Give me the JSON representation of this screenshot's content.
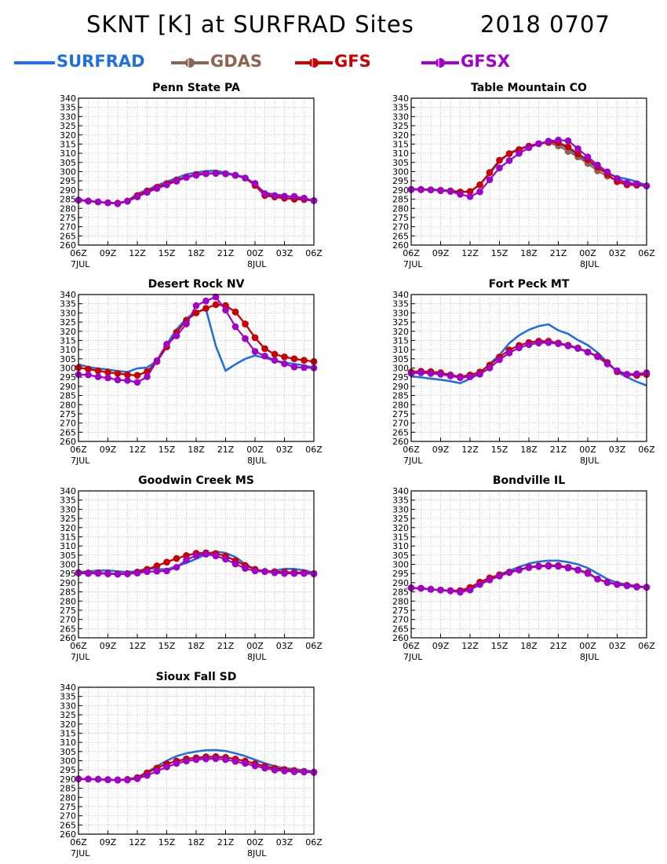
{
  "header": {
    "title": "SKNT [K] at SURFRAD Sites",
    "date": "2018 0707"
  },
  "legend": [
    {
      "name": "SURFRAD",
      "color": "#1f6fe0",
      "marker": "none"
    },
    {
      "name": "GDAS",
      "color": "#8c6452",
      "marker": "circle"
    },
    {
      "name": "GFS",
      "color": "#c80000",
      "marker": "circle"
    },
    {
      "name": "GFSX",
      "color": "#a000c8",
      "marker": "circle"
    }
  ],
  "axes": {
    "y_ticks": [
      260,
      265,
      270,
      275,
      280,
      285,
      290,
      295,
      300,
      305,
      310,
      315,
      320,
      325,
      330,
      335,
      340
    ],
    "ylim": [
      260,
      340
    ],
    "x_ticks": [
      "06Z",
      "09Z",
      "12Z",
      "15Z",
      "18Z",
      "21Z",
      "00Z",
      "03Z",
      "06Z"
    ],
    "x_hours": [
      0,
      3,
      6,
      9,
      12,
      15,
      18,
      21,
      24
    ],
    "date_labels": [
      {
        "at_hour": 0,
        "text": "7JUL"
      },
      {
        "at_hour": 18,
        "text": "8JUL"
      }
    ],
    "grid": true
  },
  "chart_data": [
    {
      "type": "line",
      "title": "Penn State PA",
      "x": [
        0,
        1,
        2,
        3,
        4,
        5,
        6,
        7,
        8,
        9,
        10,
        11,
        12,
        13,
        14,
        15,
        16,
        17,
        18,
        19,
        20,
        21,
        22,
        23,
        24
      ],
      "series": [
        {
          "name": "SURFRAD",
          "values": [
            284.5,
            284.0,
            283.5,
            283.0,
            282.8,
            284.0,
            288.0,
            290.0,
            292.5,
            294.5,
            296.5,
            298.5,
            299.5,
            300.3,
            300.5,
            299.5,
            298.2,
            297.0,
            293.0,
            288.5,
            287.6,
            287.0,
            285.8,
            285.0,
            284.2
          ]
        },
        {
          "name": "GDAS",
          "values": [
            284.5,
            284.0,
            283.5,
            283.0,
            282.8,
            284.0,
            287.0,
            289.5,
            291.5,
            293.5,
            295.5,
            297.0,
            298.5,
            299.0,
            299.2,
            298.8,
            298.0,
            296.5,
            292.5,
            287.0,
            286.2,
            285.5,
            285.0,
            284.8,
            284.2
          ]
        },
        {
          "name": "GFS",
          "values": [
            284.5,
            284.0,
            283.5,
            283.0,
            282.8,
            284.0,
            287.0,
            289.5,
            291.5,
            293.5,
            295.5,
            297.0,
            298.5,
            299.0,
            299.2,
            298.8,
            298.0,
            296.5,
            292.5,
            287.0,
            286.2,
            285.5,
            285.0,
            284.8,
            284.2
          ]
        },
        {
          "name": "GFSX",
          "values": [
            284.5,
            284.0,
            283.5,
            283.0,
            282.5,
            283.8,
            286.2,
            288.7,
            290.8,
            292.8,
            294.8,
            296.8,
            298.0,
            298.8,
            299.0,
            298.8,
            298.0,
            296.5,
            293.6,
            288.0,
            287.0,
            286.6,
            286.5,
            285.6,
            284.2
          ]
        }
      ]
    },
    {
      "type": "line",
      "title": "Table Mountain CO",
      "x": [
        0,
        1,
        2,
        3,
        4,
        5,
        6,
        7,
        8,
        9,
        10,
        11,
        12,
        13,
        14,
        15,
        16,
        17,
        18,
        19,
        20,
        21,
        22,
        23,
        24
      ],
      "series": [
        {
          "name": "SURFRAD",
          "values": [
            290.5,
            290.4,
            290.3,
            290.0,
            289.6,
            289.0,
            289.0,
            293.0,
            299.0,
            305.5,
            310.0,
            312.5,
            314.0,
            315.2,
            315.8,
            315.2,
            312.5,
            309.0,
            305.5,
            302.0,
            299.0,
            297.0,
            296.0,
            294.5,
            292.5
          ]
        },
        {
          "name": "GDAS",
          "values": [
            290.3,
            290.3,
            290.1,
            289.8,
            289.5,
            288.9,
            289.2,
            292.8,
            299.5,
            306.2,
            309.8,
            312.0,
            313.9,
            315.2,
            315.7,
            314.0,
            311.0,
            308.0,
            304.4,
            300.4,
            297.5,
            295.0,
            293.2,
            292.9,
            292.2
          ]
        },
        {
          "name": "GFS",
          "values": [
            290.3,
            290.3,
            290.1,
            289.8,
            289.5,
            288.9,
            289.2,
            292.8,
            299.5,
            306.2,
            309.8,
            312.0,
            313.9,
            315.2,
            316.2,
            315.8,
            313.5,
            309.6,
            306.5,
            302.5,
            298.5,
            294.5,
            292.8,
            292.6,
            292.2
          ]
        },
        {
          "name": "GFSX",
          "values": [
            290.2,
            290.1,
            290.0,
            289.6,
            289.2,
            287.6,
            286.4,
            289.0,
            295.6,
            302.0,
            306.0,
            309.9,
            313.0,
            315.2,
            316.6,
            317.2,
            316.8,
            312.5,
            308.0,
            303.6,
            299.9,
            296.3,
            293.9,
            293.4,
            292.2
          ]
        }
      ]
    },
    {
      "type": "line",
      "title": "Desert Rock NV",
      "x": [
        0,
        1,
        2,
        3,
        4,
        5,
        6,
        7,
        8,
        9,
        10,
        11,
        12,
        13,
        14,
        15,
        16,
        17,
        18,
        19,
        20,
        21,
        22,
        23,
        24
      ],
      "series": [
        {
          "name": "SURFRAD",
          "values": [
            302.0,
            300.5,
            299.7,
            299.2,
            298.3,
            297.8,
            299.8,
            300.2,
            304.0,
            313.0,
            321.0,
            327.0,
            330.5,
            332.0,
            312.0,
            298.5,
            302.0,
            305.0,
            306.8,
            305.5,
            304.0,
            303.0,
            302.2,
            301.5,
            300.0
          ]
        },
        {
          "name": "GDAS",
          "values": [
            300.2,
            299.4,
            298.5,
            297.6,
            297.0,
            296.3,
            296.0,
            298.0,
            303.5,
            311.5,
            319.5,
            326.0,
            330.0,
            332.5,
            334.5,
            334.0,
            330.5,
            324.0,
            316.5,
            310.5,
            307.5,
            306.0,
            305.0,
            304.2,
            303.5
          ]
        },
        {
          "name": "GFS",
          "values": [
            300.2,
            299.4,
            298.5,
            297.6,
            297.0,
            296.3,
            296.0,
            298.0,
            303.5,
            311.5,
            319.5,
            326.0,
            330.0,
            332.5,
            334.5,
            334.0,
            330.5,
            324.0,
            316.5,
            310.5,
            307.5,
            306.0,
            305.0,
            304.2,
            303.5
          ]
        },
        {
          "name": "GFSX",
          "values": [
            296.4,
            296.2,
            295.2,
            294.6,
            293.5,
            293.2,
            292.2,
            295.2,
            304.0,
            313.0,
            317.5,
            324.0,
            334.0,
            336.5,
            338.7,
            331.5,
            322.5,
            316.0,
            309.0,
            306.5,
            304.2,
            302.3,
            300.5,
            300.2,
            300.0
          ]
        }
      ]
    },
    {
      "type": "line",
      "title": "Fort Peck MT",
      "x": [
        0,
        1,
        2,
        3,
        4,
        5,
        6,
        7,
        8,
        9,
        10,
        11,
        12,
        13,
        14,
        15,
        16,
        17,
        18,
        19,
        20,
        21,
        22,
        23,
        24
      ],
      "series": [
        {
          "name": "SURFRAD",
          "values": [
            295.5,
            294.9,
            294.2,
            293.6,
            292.8,
            291.7,
            294.2,
            297.0,
            302.3,
            307.0,
            313.5,
            317.8,
            320.8,
            322.8,
            323.8,
            320.5,
            318.6,
            315.2,
            312.5,
            308.4,
            303.2,
            297.8,
            295.0,
            292.5,
            290.5
          ]
        },
        {
          "name": "GDAS",
          "values": [
            297.8,
            298.2,
            298.0,
            297.4,
            296.2,
            295.2,
            296.2,
            297.8,
            301.6,
            306.0,
            309.8,
            312.3,
            313.9,
            314.6,
            314.6,
            313.6,
            312.4,
            310.9,
            308.7,
            306.4,
            303.0,
            298.0,
            296.4,
            296.0,
            296.5
          ]
        },
        {
          "name": "GFS",
          "values": [
            297.8,
            298.2,
            298.0,
            297.4,
            296.2,
            295.2,
            296.2,
            297.8,
            301.6,
            306.0,
            309.8,
            312.3,
            313.9,
            314.6,
            314.6,
            313.6,
            312.4,
            310.9,
            308.7,
            306.4,
            303.0,
            298.0,
            296.4,
            296.0,
            296.5
          ]
        },
        {
          "name": "GFSX",
          "values": [
            297.0,
            297.4,
            297.0,
            296.6,
            295.7,
            294.7,
            295.2,
            296.6,
            300.0,
            304.5,
            308.2,
            311.0,
            312.7,
            313.6,
            313.8,
            313.2,
            312.0,
            310.6,
            308.6,
            306.1,
            302.2,
            298.6,
            296.6,
            296.8,
            297.4
          ]
        }
      ]
    },
    {
      "type": "line",
      "title": "Goodwin Creek MS",
      "x": [
        0,
        1,
        2,
        3,
        4,
        5,
        6,
        7,
        8,
        9,
        10,
        11,
        12,
        13,
        14,
        15,
        16,
        17,
        18,
        19,
        20,
        21,
        22,
        23,
        24
      ],
      "series": [
        {
          "name": "SURFRAD",
          "values": [
            295.8,
            296.2,
            296.6,
            296.7,
            296.2,
            295.8,
            296.3,
            297.8,
            297.5,
            297.2,
            299.0,
            300.7,
            303.0,
            305.5,
            307.0,
            306.2,
            304.0,
            300.2,
            297.2,
            296.0,
            296.6,
            297.5,
            297.5,
            296.8,
            295.5
          ]
        },
        {
          "name": "GDAS",
          "values": [
            295.5,
            295.3,
            295.4,
            295.0,
            294.8,
            295.0,
            295.8,
            297.3,
            299.2,
            301.2,
            303.2,
            304.8,
            306.0,
            306.3,
            305.9,
            304.5,
            302.0,
            299.4,
            297.3,
            296.2,
            296.0,
            295.8,
            295.6,
            295.5,
            295.0
          ]
        },
        {
          "name": "GFS",
          "values": [
            295.5,
            295.3,
            295.4,
            295.0,
            294.8,
            295.0,
            295.8,
            297.3,
            299.2,
            301.2,
            303.2,
            304.8,
            306.0,
            306.3,
            305.9,
            304.5,
            302.0,
            299.4,
            297.3,
            296.2,
            296.0,
            295.8,
            295.6,
            295.5,
            295.0
          ]
        },
        {
          "name": "GFSX",
          "values": [
            295.2,
            295.0,
            295.0,
            294.8,
            294.6,
            294.8,
            295.2,
            296.0,
            296.2,
            296.4,
            298.4,
            302.4,
            304.8,
            305.5,
            304.6,
            302.8,
            300.2,
            297.8,
            296.4,
            296.0,
            295.4,
            295.0,
            295.0,
            295.0,
            294.8
          ]
        }
      ]
    },
    {
      "type": "line",
      "title": "Bondville IL",
      "x": [
        0,
        1,
        2,
        3,
        4,
        5,
        6,
        7,
        8,
        9,
        10,
        11,
        12,
        13,
        14,
        15,
        16,
        17,
        18,
        19,
        20,
        21,
        22,
        23,
        24
      ],
      "series": [
        {
          "name": "SURFRAD",
          "values": [
            287.0,
            286.8,
            286.3,
            286.0,
            285.6,
            285.4,
            286.5,
            289.0,
            292.0,
            294.5,
            296.5,
            298.6,
            300.4,
            301.5,
            302.0,
            302.0,
            301.2,
            300.0,
            298.0,
            295.0,
            292.0,
            290.0,
            289.0,
            288.2,
            287.5
          ]
        },
        {
          "name": "GDAS",
          "values": [
            287.2,
            287.0,
            286.4,
            286.0,
            285.7,
            285.7,
            287.4,
            290.3,
            292.6,
            294.3,
            295.8,
            297.1,
            298.5,
            299.1,
            299.4,
            299.3,
            298.4,
            297.0,
            295.5,
            292.0,
            290.3,
            289.1,
            288.6,
            287.9,
            287.5
          ]
        },
        {
          "name": "GFS",
          "values": [
            287.2,
            287.0,
            286.4,
            286.0,
            285.7,
            285.7,
            287.4,
            290.3,
            292.6,
            294.3,
            295.8,
            297.1,
            298.5,
            299.1,
            299.4,
            299.3,
            298.4,
            297.0,
            295.5,
            292.0,
            290.3,
            289.1,
            288.6,
            287.9,
            287.5
          ]
        },
        {
          "name": "GFSX",
          "values": [
            287.2,
            287.0,
            286.5,
            286.0,
            285.5,
            284.8,
            286.0,
            289.0,
            291.5,
            293.6,
            295.5,
            296.9,
            298.2,
            298.8,
            299.0,
            298.9,
            298.0,
            296.8,
            295.0,
            292.0,
            290.0,
            289.0,
            288.3,
            287.6,
            287.5
          ]
        }
      ]
    },
    {
      "type": "line",
      "title": "Sioux Fall SD",
      "x": [
        0,
        1,
        2,
        3,
        4,
        5,
        6,
        7,
        8,
        9,
        10,
        11,
        12,
        13,
        14,
        15,
        16,
        17,
        18,
        19,
        20,
        21,
        22,
        23,
        24
      ],
      "series": [
        {
          "name": "SURFRAD",
          "values": [
            290.0,
            290.0,
            289.8,
            289.6,
            289.5,
            289.8,
            291.0,
            293.8,
            297.0,
            300.0,
            302.5,
            304.0,
            305.0,
            305.7,
            305.8,
            305.3,
            304.0,
            302.5,
            300.5,
            298.6,
            297.0,
            296.0,
            295.4,
            294.8,
            294.0
          ]
        },
        {
          "name": "GDAS",
          "values": [
            290.1,
            290.0,
            289.9,
            289.7,
            289.6,
            289.8,
            290.8,
            293.4,
            296.0,
            298.3,
            299.8,
            301.0,
            301.6,
            302.1,
            302.2,
            301.8,
            300.9,
            299.8,
            298.4,
            297.0,
            295.9,
            295.2,
            294.7,
            294.2,
            293.8
          ]
        },
        {
          "name": "GFS",
          "values": [
            290.1,
            290.0,
            289.9,
            289.7,
            289.6,
            289.8,
            290.8,
            293.4,
            296.0,
            298.3,
            299.8,
            301.0,
            301.6,
            302.1,
            302.2,
            301.8,
            300.9,
            299.8,
            298.4,
            297.0,
            295.9,
            295.2,
            294.7,
            294.2,
            293.8
          ]
        },
        {
          "name": "GFSX",
          "values": [
            290.1,
            290.0,
            289.9,
            289.6,
            289.4,
            289.5,
            290.2,
            292.0,
            294.3,
            296.6,
            298.5,
            299.8,
            300.6,
            301.0,
            301.1,
            300.6,
            299.6,
            298.5,
            297.2,
            295.9,
            294.9,
            294.4,
            294.0,
            293.8,
            293.6
          ]
        }
      ]
    }
  ]
}
